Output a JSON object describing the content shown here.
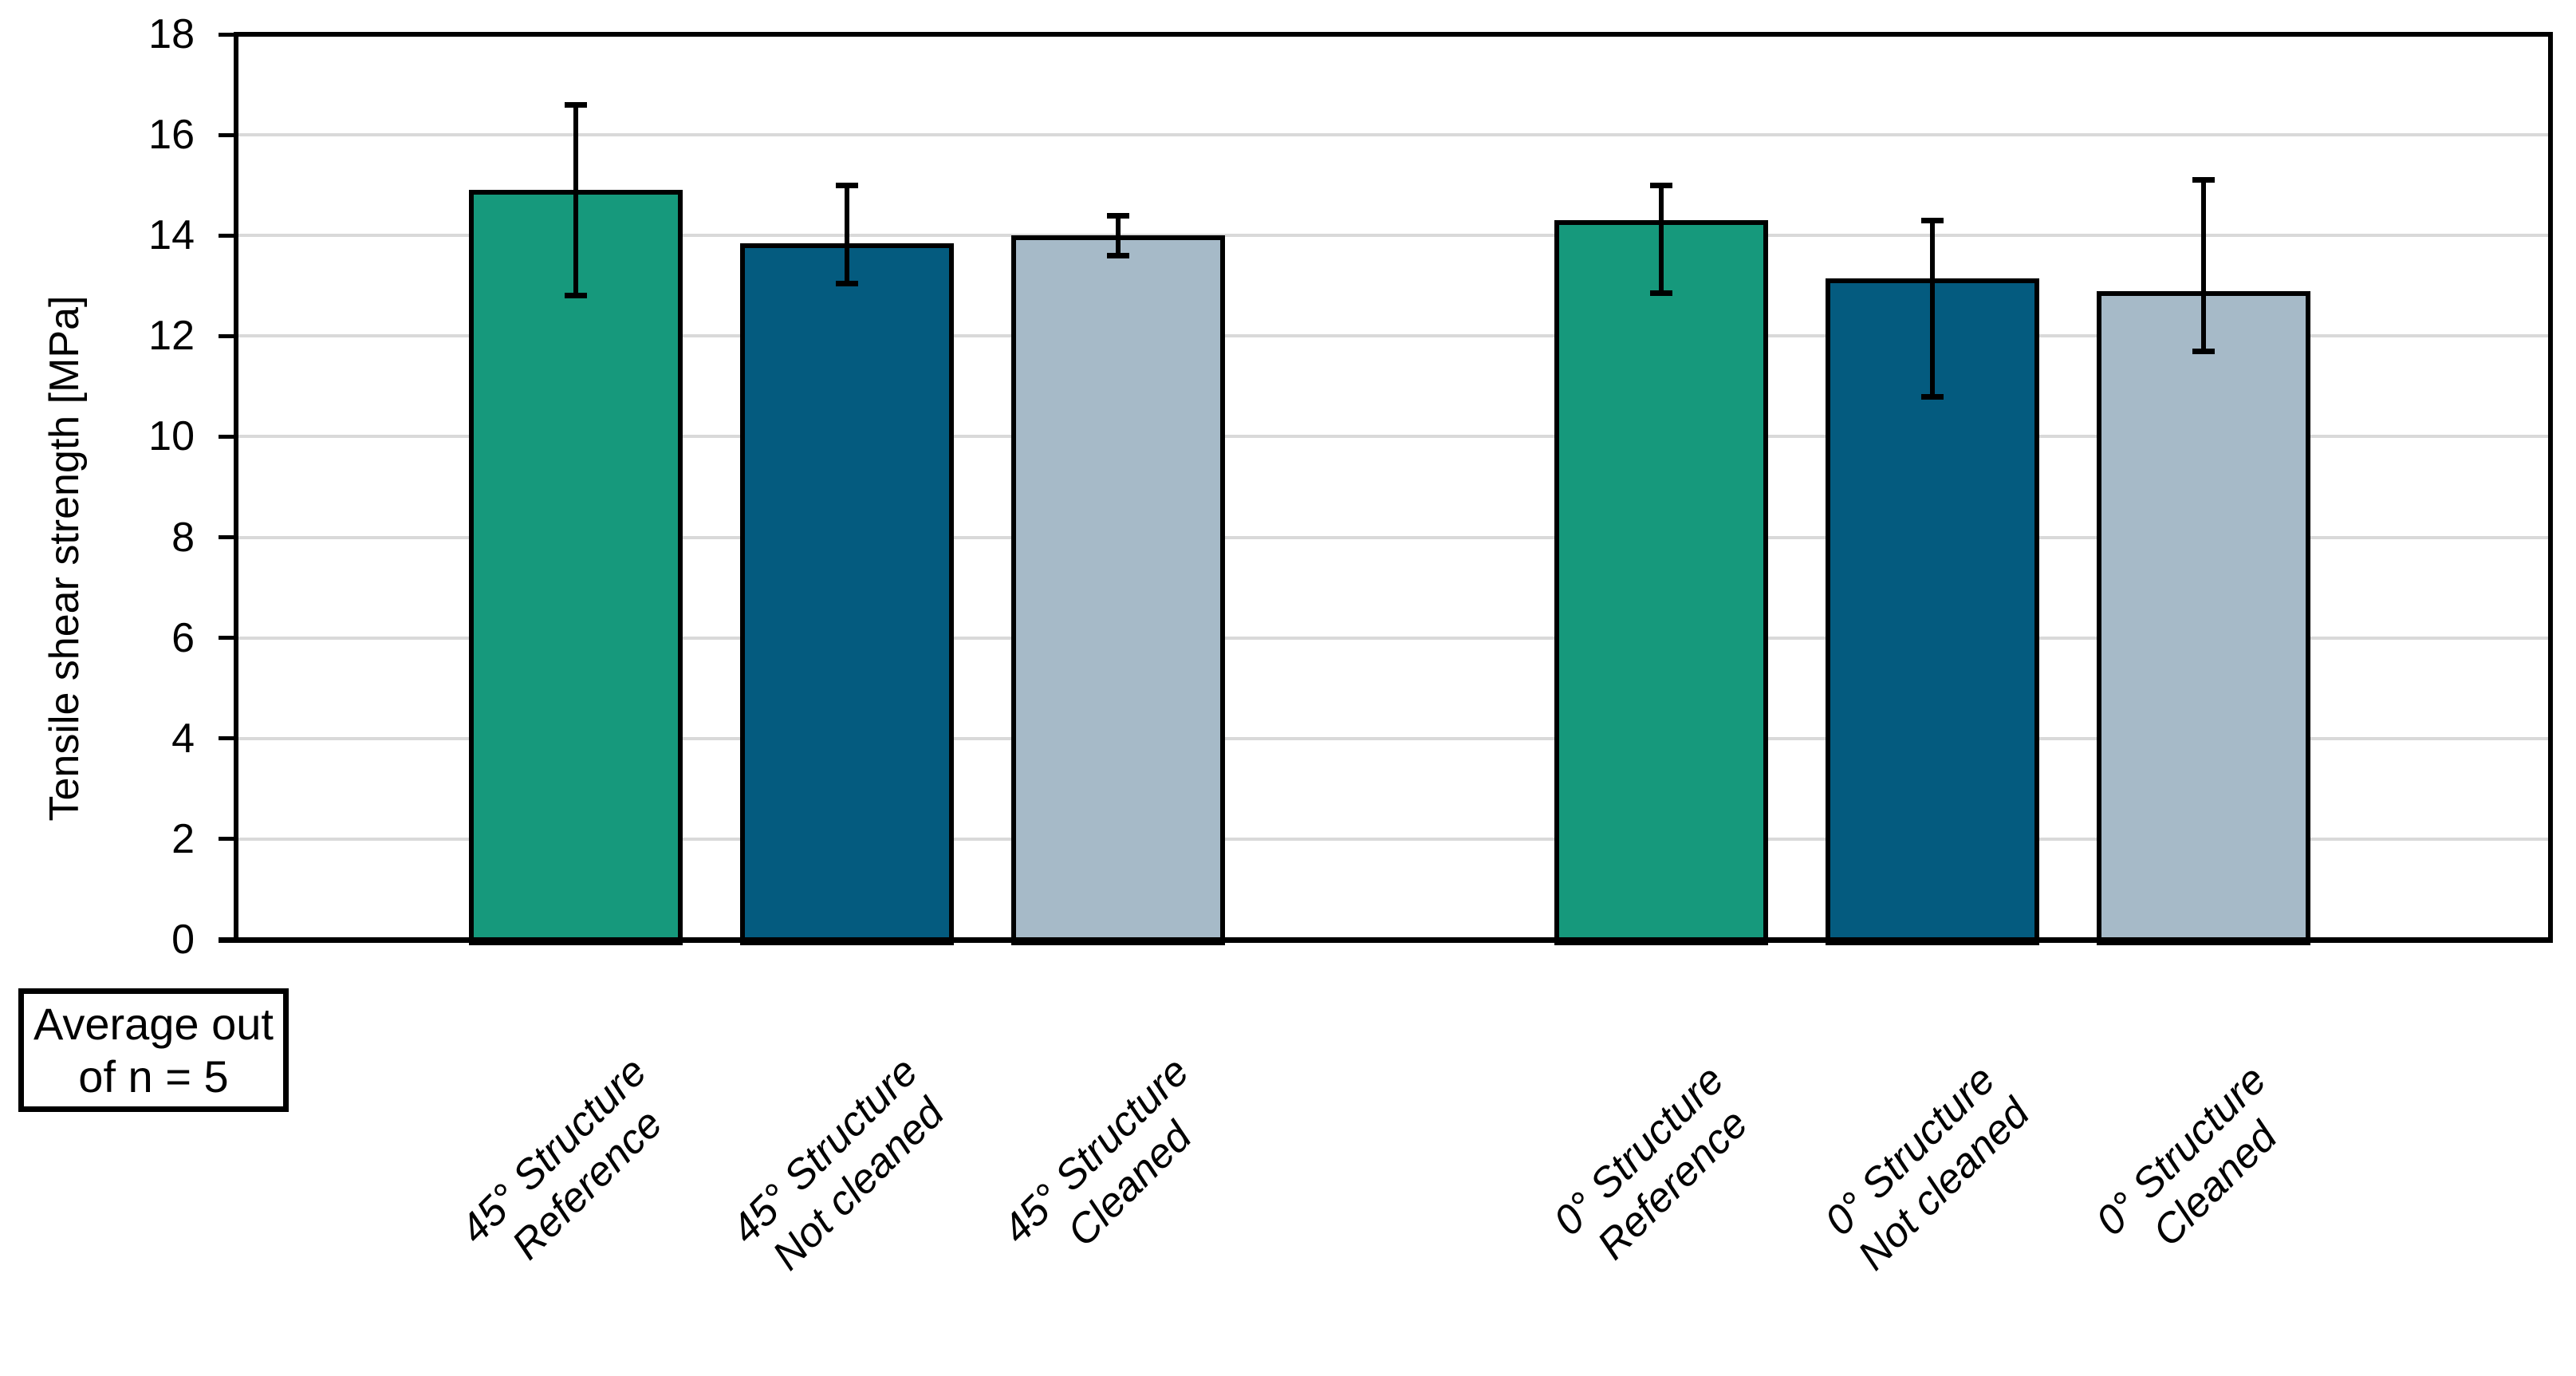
{
  "chart_data": {
    "type": "bar",
    "title": "",
    "xlabel": "",
    "ylabel": "Tensile shear strength [MPa]",
    "ylim": [
      0,
      18
    ],
    "yticks": [
      0,
      2,
      4,
      6,
      8,
      10,
      12,
      14,
      16,
      18
    ],
    "grid": "horizontal",
    "legend_position": "none",
    "annotation": "Average out\nof n = 5",
    "categories": [
      "45° Structure\nReference",
      "45° Structure\nNot cleaned",
      "45° Structure\nCleaned",
      "0° Structure\nReference",
      "0° Structure\nNot cleaned",
      "0° Structure\nCleaned"
    ],
    "series": [
      {
        "name": "Tensile shear strength",
        "values": [
          14.9,
          13.85,
          14.0,
          14.3,
          13.15,
          12.9
        ],
        "error_high": [
          16.6,
          15.0,
          14.4,
          15.0,
          14.3,
          15.1
        ],
        "error_low": [
          12.8,
          13.05,
          13.6,
          12.85,
          10.8,
          11.7
        ]
      }
    ],
    "groups": [
      {
        "label": "45° Structure",
        "bar_indices": [
          0,
          1,
          2
        ]
      },
      {
        "label": "0° Structure",
        "bar_indices": [
          3,
          4,
          5
        ]
      }
    ],
    "bar_colors": [
      "#16997C",
      "#045B7F",
      "#A6BAC8",
      "#16997C",
      "#045B7F",
      "#A6BAC8"
    ],
    "gridline_color": "#D9D9D9",
    "axis_color": "#000000",
    "background_color": "#FFFFFF"
  }
}
